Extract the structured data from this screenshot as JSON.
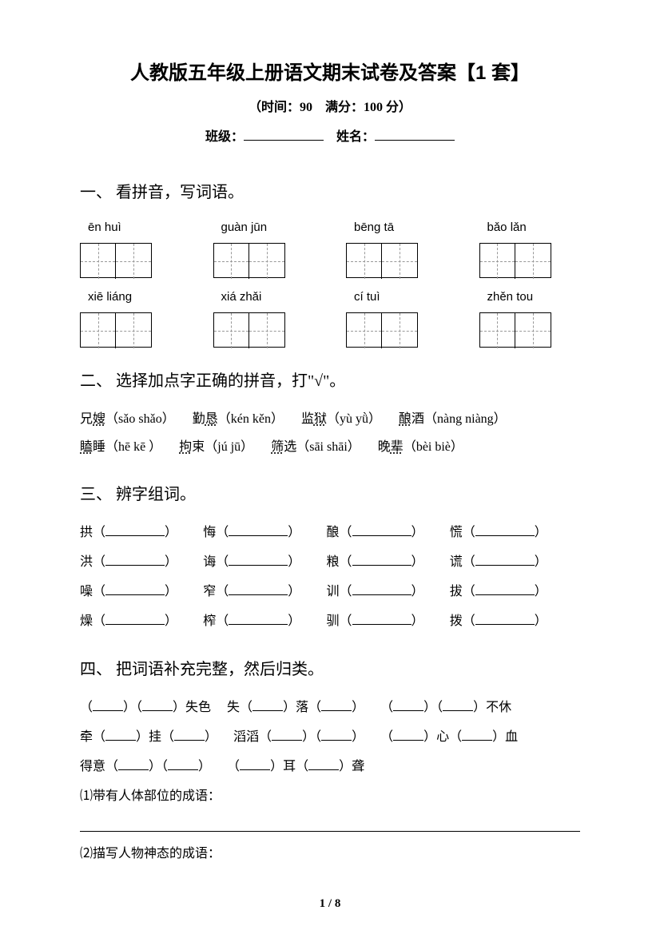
{
  "page": {
    "title": "人教版五年级上册语文期末试卷及答案【1 套】",
    "subtitle": "（时间：90　满分：100 分）",
    "class_label": "班级：",
    "name_label": "姓名：",
    "page_number": "1 / 8"
  },
  "q1": {
    "title": "一、 看拼音，写词语。",
    "items": [
      {
        "pinyin": "ēn huì",
        "cells": 2
      },
      {
        "pinyin": "ɡuàn jūn",
        "cells": 2
      },
      {
        "pinyin": "bēnɡ tā",
        "cells": 2
      },
      {
        "pinyin": "bǎo lǎn",
        "cells": 2
      },
      {
        "pinyin": "xiē liánɡ",
        "cells": 2
      },
      {
        "pinyin": "xiá zhǎi",
        "cells": 2
      },
      {
        "pinyin": "cí tuì",
        "cells": 2
      },
      {
        "pinyin": "zhěn tou",
        "cells": 2
      }
    ]
  },
  "q2": {
    "title": "二、 选择加点字正确的拼音，打\"√\"。",
    "row1": [
      {
        "pre": "兄",
        "dot": "嫂",
        "py": "（sǎo shǎo）"
      },
      {
        "pre": "勤",
        "dot": "恳",
        "py": "（kén kěn）"
      },
      {
        "pre": "监",
        "dot": "狱",
        "py": "（yù yǜ）"
      },
      {
        "pre": "",
        "dot": "酿",
        "post": "酒",
        "py": "（nàng niàng）"
      }
    ],
    "row2": [
      {
        "pre": "",
        "dot": "瞌",
        "post": "睡",
        "py": "（hē  kē ）"
      },
      {
        "pre": "",
        "dot": "拘",
        "post": "束",
        "py": "（jú jū）"
      },
      {
        "pre": "",
        "dot": "筛",
        "post": "选",
        "py": "（sāi shāi）"
      },
      {
        "pre": "晚",
        "dot": "辈",
        "py": "（bèi biè）"
      }
    ]
  },
  "q3": {
    "title": "三、 辨字组词。",
    "rows": [
      [
        "拱",
        "悔",
        "酿",
        "慌"
      ],
      [
        "洪",
        "诲",
        "粮",
        "谎"
      ],
      [
        "噪",
        "窄",
        "训",
        "拔"
      ],
      [
        "燥",
        "榨",
        "驯",
        "拨"
      ]
    ]
  },
  "q4": {
    "title": "四、 把词语补充完整，然后归类。",
    "line1a": [
      "（",
      "）（",
      "）失色"
    ],
    "line1b": [
      "失（",
      "）落（",
      "）"
    ],
    "line1c": [
      "（",
      "）（",
      "）不休"
    ],
    "line2a": [
      "牵（",
      "）挂（",
      "）"
    ],
    "line2b": [
      "滔滔（",
      "）（",
      "）"
    ],
    "line2c": [
      "（",
      "）心（",
      "）血"
    ],
    "line3a": [
      "得意（",
      "）（",
      "）"
    ],
    "line3b": [
      "（",
      "）耳（",
      "）聋"
    ],
    "sub1": "⑴带有人体部位的成语：",
    "sub2": "⑵描写人物神态的成语："
  }
}
